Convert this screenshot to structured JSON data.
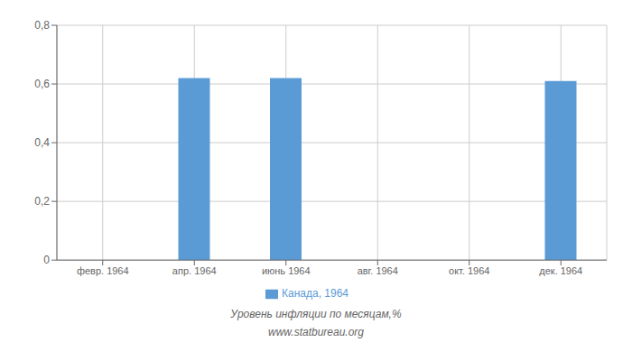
{
  "chart_data": {
    "type": "bar",
    "categories": [
      "февр. 1964",
      "апр. 1964",
      "июнь 1964",
      "авг. 1964",
      "окт. 1964",
      "дек. 1964"
    ],
    "series": [
      {
        "name": "Канада, 1964",
        "color": "#5b9bd5",
        "values": [
          0.0,
          0.62,
          0.62,
          0.0,
          0.0,
          0.61
        ]
      }
    ],
    "ylim": [
      0,
      0.8
    ],
    "yticks": [
      0,
      {
        "value": 0.2,
        "label": "0,2"
      },
      {
        "value": 0.4,
        "label": "0,4"
      },
      {
        "value": 0.6,
        "label": "0,6"
      },
      {
        "value": 0.8,
        "label": "0,8"
      }
    ],
    "grid": true,
    "legend": "bottom",
    "annotations": [
      "Уровень инфляции по месяцам,%",
      "www.statbureau.org"
    ]
  }
}
